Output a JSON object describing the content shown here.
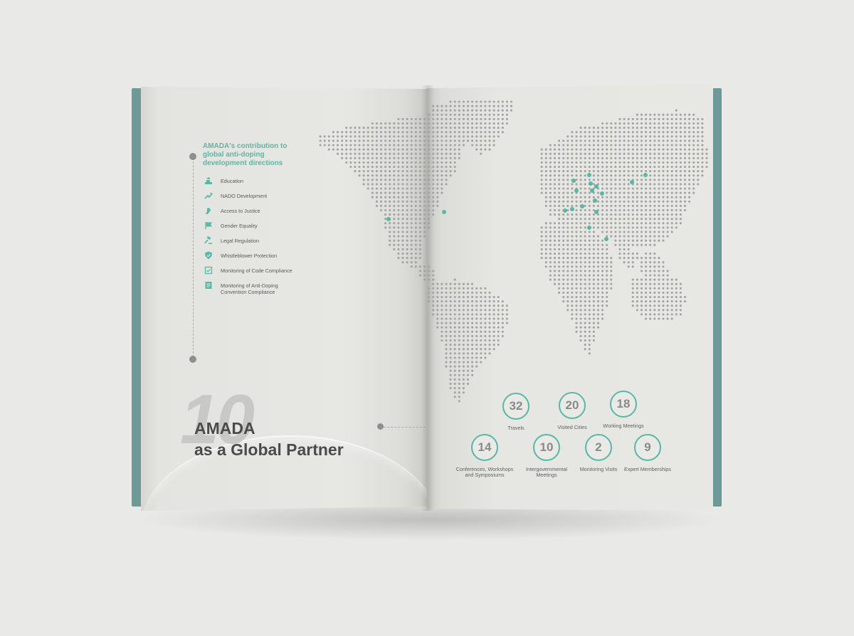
{
  "spread": {
    "heading": "AMADA's contribution to global anti-doping development directions",
    "page_number": "10",
    "title_line1": "AMADA",
    "title_line2": "as a Global Partner",
    "directions": [
      {
        "label": "Education",
        "icon": "education-icon"
      },
      {
        "label": "NADO Development",
        "icon": "trend-up-icon"
      },
      {
        "label": "Access to Justice",
        "icon": "hand-icon"
      },
      {
        "label": "Gender Equality",
        "icon": "flag-icon"
      },
      {
        "label": "Legal Regulation",
        "icon": "gavel-icon"
      },
      {
        "label": "Whistleblower Protection",
        "icon": "shield-icon"
      },
      {
        "label": "Monitoring of Code Compliance",
        "icon": "checkbox-icon"
      },
      {
        "label": "Monitoring of Anti-Doping Convention Compliance",
        "icon": "document-icon"
      }
    ],
    "stats": [
      {
        "value": "32",
        "label": "Travels"
      },
      {
        "value": "20",
        "label": "Visited Cities"
      },
      {
        "value": "18",
        "label": "Working Meetings"
      },
      {
        "value": "14",
        "label": "Conferences, Workshops and Symposiums"
      },
      {
        "value": "10",
        "label": "Intergovernmental Meetings"
      },
      {
        "value": "2",
        "label": "Monitoring Visits"
      },
      {
        "value": "9",
        "label": "Expert Memberships"
      }
    ]
  },
  "colors": {
    "accent": "#58b8a7",
    "cover": "#6d9a96",
    "map_dot": "#a3a3a1",
    "text": "#4b4b4a"
  }
}
